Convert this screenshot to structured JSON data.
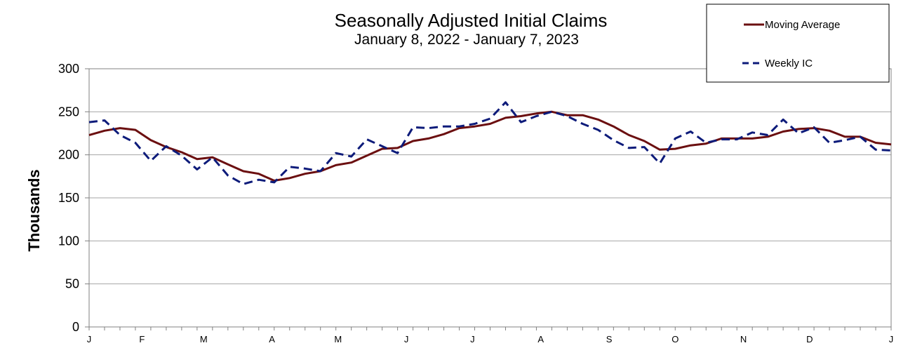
{
  "chart_data": {
    "type": "line",
    "title": "Seasonally Adjusted Initial  Claims",
    "subtitle": "January 8, 2022 - January 7, 2023",
    "ylabel": "Thousands",
    "xlabel": "",
    "ylim": [
      0,
      300
    ],
    "yticks": [
      0,
      50,
      100,
      150,
      200,
      250,
      300
    ],
    "grid": true,
    "legend_position": "top-right",
    "x_tick_labels": [
      "J",
      "F",
      "M",
      "A",
      "M",
      "J",
      "J",
      "A",
      "S",
      "O",
      "N",
      "D",
      "J"
    ],
    "x_weeks": [
      "2022-01-08",
      "2022-01-15",
      "2022-01-22",
      "2022-01-29",
      "2022-02-05",
      "2022-02-12",
      "2022-02-19",
      "2022-02-26",
      "2022-03-05",
      "2022-03-12",
      "2022-03-19",
      "2022-03-26",
      "2022-04-02",
      "2022-04-09",
      "2022-04-16",
      "2022-04-23",
      "2022-04-30",
      "2022-05-07",
      "2022-05-14",
      "2022-05-21",
      "2022-05-28",
      "2022-06-04",
      "2022-06-11",
      "2022-06-18",
      "2022-06-25",
      "2022-07-02",
      "2022-07-09",
      "2022-07-16",
      "2022-07-23",
      "2022-07-30",
      "2022-08-06",
      "2022-08-13",
      "2022-08-20",
      "2022-08-27",
      "2022-09-03",
      "2022-09-10",
      "2022-09-17",
      "2022-09-24",
      "2022-10-01",
      "2022-10-08",
      "2022-10-15",
      "2022-10-22",
      "2022-10-29",
      "2022-11-05",
      "2022-11-12",
      "2022-11-19",
      "2022-11-26",
      "2022-12-03",
      "2022-12-10",
      "2022-12-17",
      "2022-12-24",
      "2022-12-31",
      "2023-01-07"
    ],
    "series": [
      {
        "name": "Moving Average",
        "color": "#6b0f10",
        "style": "solid",
        "values": [
          223,
          228,
          231,
          229,
          217,
          209,
          203,
          195,
          197,
          189,
          181,
          178,
          170,
          173,
          178,
          181,
          188,
          191,
          199,
          207,
          208,
          216,
          219,
          224,
          231,
          233,
          236,
          243,
          245,
          248,
          250,
          246,
          246,
          241,
          233,
          223,
          216,
          206,
          207,
          211,
          213,
          219,
          219,
          219,
          221,
          227,
          230,
          231,
          228,
          221,
          221,
          214,
          212
        ]
      },
      {
        "name": "Weekly IC",
        "color": "#0d1b7a",
        "style": "dashed",
        "values": [
          238,
          240,
          223,
          214,
          193,
          210,
          199,
          183,
          197,
          176,
          166,
          171,
          168,
          186,
          184,
          181,
          202,
          198,
          218,
          210,
          202,
          232,
          231,
          233,
          233,
          236,
          242,
          261,
          238,
          245,
          250,
          245,
          236,
          229,
          217,
          208,
          209,
          190,
          219,
          227,
          214,
          218,
          218,
          226,
          223,
          241,
          225,
          232,
          214,
          217,
          221,
          206,
          205
        ]
      }
    ]
  }
}
